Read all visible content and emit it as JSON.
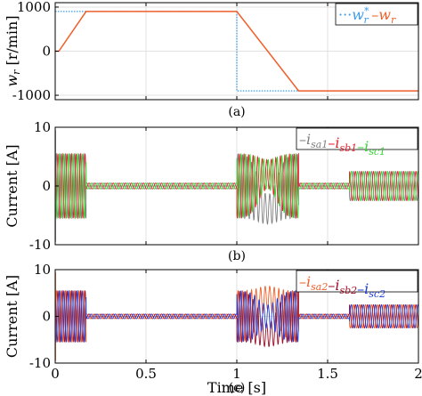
{
  "chart_data": [
    {
      "type": "line",
      "panel_caption": "(a)",
      "ylabel_symbol": "w",
      "ylabel_sub": "r",
      "ylabel_unit": "[r/min]",
      "xlim": [
        0,
        2
      ],
      "ylim": [
        -1100,
        1100
      ],
      "yticks": [
        1000,
        0,
        -1000
      ],
      "grid": true,
      "legend_position": "top-right",
      "series": [
        {
          "name": "w",
          "name_sub": "r",
          "name_sup": "*",
          "color": "#3d9be9",
          "dash": "dotted",
          "x": [
            0,
            1.0,
            1.0,
            2.0
          ],
          "y": [
            900,
            900,
            -900,
            -900
          ]
        },
        {
          "name": "w",
          "name_sub": "r",
          "color": "#f0602a",
          "dash": "solid",
          "x": [
            0,
            0.02,
            0.17,
            1.0,
            1.34,
            2.0
          ],
          "y": [
            0,
            0,
            900,
            900,
            -900,
            -900
          ]
        }
      ]
    },
    {
      "type": "line",
      "panel_caption": "(b)",
      "ylabel": "Current [A]",
      "xlim": [
        0,
        2
      ],
      "ylim": [
        -10,
        10
      ],
      "yticks": [
        10,
        0,
        -10
      ],
      "grid": true,
      "legend_position": "top-right",
      "series": [
        {
          "name": "i",
          "name_sub": "sa1",
          "color": "#7f7f7f"
        },
        {
          "name": "i",
          "name_sub": "sb1",
          "color": "#e8202a"
        },
        {
          "name": "i",
          "name_sub": "sc1",
          "color": "#33d633"
        }
      ],
      "segments": [
        {
          "x": [
            0,
            0.17
          ],
          "amplitude": 5.5,
          "frequency_hz": 40
        },
        {
          "x": [
            0.17,
            1.0
          ],
          "amplitude": 0.5,
          "frequency_hz": 30
        },
        {
          "x": [
            1.0,
            1.34
          ],
          "amplitude": 5.5,
          "frequency_hz": 40
        },
        {
          "x": [
            1.34,
            1.62
          ],
          "amplitude": 0.5,
          "frequency_hz": 30
        },
        {
          "x": [
            1.62,
            2.0
          ],
          "amplitude": 2.5,
          "frequency_hz": 30
        }
      ]
    },
    {
      "type": "line",
      "panel_caption": "(c)",
      "ylabel": "Current [A]",
      "xlabel": "Time [s]",
      "xlim": [
        0,
        2
      ],
      "ylim": [
        -10,
        10
      ],
      "xticks": [
        0,
        0.5,
        1,
        1.5,
        2
      ],
      "yticks": [
        10,
        0,
        -10
      ],
      "grid": true,
      "legend_position": "top-right",
      "series": [
        {
          "name": "i",
          "name_sub": "sa2",
          "color": "#f0602a"
        },
        {
          "name": "i",
          "name_sub": "sb2",
          "color": "#a01028"
        },
        {
          "name": "i",
          "name_sub": "sc2",
          "color": "#1f3cd6"
        }
      ],
      "segments": [
        {
          "x": [
            0,
            0.17
          ],
          "amplitude": 5.5,
          "frequency_hz": 40
        },
        {
          "x": [
            0.17,
            1.0
          ],
          "amplitude": 0.5,
          "frequency_hz": 30
        },
        {
          "x": [
            1.0,
            1.34
          ],
          "amplitude": 5.5,
          "frequency_hz": 40
        },
        {
          "x": [
            1.34,
            1.62
          ],
          "amplitude": 0.5,
          "frequency_hz": 30
        },
        {
          "x": [
            1.62,
            2.0
          ],
          "amplitude": 2.5,
          "frequency_hz": 30
        }
      ]
    }
  ]
}
